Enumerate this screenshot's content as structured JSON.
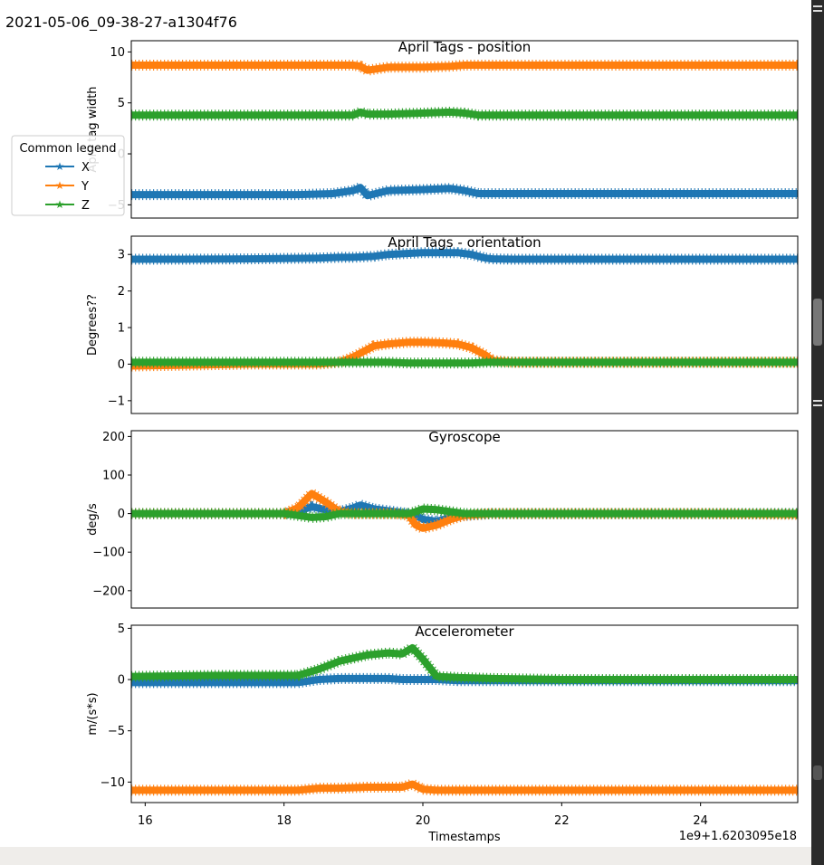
{
  "page_title": "2021-05-06_09-38-27-a1304f76",
  "legend": {
    "title": "Common legend",
    "entries": [
      "X",
      "Y",
      "Z"
    ]
  },
  "colors": {
    "X": "#1f77b4",
    "Y": "#ff7f0e",
    "Z": "#2ca02c",
    "axes": "#000000",
    "strip": "#efedea",
    "scrollbar": "#2b2b2b"
  },
  "xaxis": {
    "label": "Timestamps",
    "offset_text": "1e9+1.6203095e18",
    "range": [
      15.8,
      25.4
    ],
    "ticks": [
      16,
      18,
      20,
      22,
      24
    ],
    "tick_labels": [
      "16",
      "18",
      "20",
      "22",
      "24"
    ]
  },
  "chart_data": [
    {
      "type": "line",
      "title": "April Tags - position",
      "ylabel": "April tag width",
      "ylim": [
        -6.3,
        11.1
      ],
      "yticks": [
        -5,
        0,
        5,
        10
      ],
      "ytick_labels": [
        "−5",
        "0",
        "5",
        "10"
      ],
      "x": [
        15.8,
        16.5,
        17.5,
        18.2,
        18.7,
        19.0,
        19.1,
        19.2,
        19.5,
        20.0,
        20.4,
        20.6,
        20.8,
        21.0,
        22.0,
        23.0,
        24.0,
        25.4
      ],
      "series": [
        {
          "name": "X",
          "values": [
            -4.0,
            -4.0,
            -4.0,
            -4.0,
            -3.9,
            -3.6,
            -3.3,
            -4.1,
            -3.6,
            -3.5,
            -3.4,
            -3.6,
            -3.9,
            -3.9,
            -3.9,
            -3.9,
            -3.9,
            -3.9
          ]
        },
        {
          "name": "Y",
          "values": [
            8.7,
            8.7,
            8.7,
            8.7,
            8.7,
            8.7,
            8.6,
            8.2,
            8.5,
            8.5,
            8.6,
            8.7,
            8.7,
            8.7,
            8.7,
            8.7,
            8.7,
            8.7
          ]
        },
        {
          "name": "Z",
          "values": [
            3.8,
            3.8,
            3.8,
            3.8,
            3.8,
            3.8,
            4.1,
            3.9,
            3.9,
            4.0,
            4.1,
            4.0,
            3.8,
            3.8,
            3.8,
            3.8,
            3.8,
            3.8
          ]
        }
      ]
    },
    {
      "type": "line",
      "title": "April Tags - orientation",
      "ylabel": "Degrees??",
      "ylim": [
        -1.35,
        3.5
      ],
      "yticks": [
        -1,
        0,
        1,
        2,
        3
      ],
      "ytick_labels": [
        "−1",
        "0",
        "1",
        "2",
        "3"
      ],
      "x": [
        15.8,
        16.5,
        17.5,
        18.5,
        18.8,
        19.0,
        19.3,
        19.5,
        19.8,
        20.0,
        20.3,
        20.5,
        20.7,
        20.9,
        21.0,
        21.3,
        22.0,
        23.0,
        24.0,
        25.4
      ],
      "series": [
        {
          "name": "X",
          "values": [
            2.87,
            2.87,
            2.88,
            2.9,
            2.92,
            2.92,
            2.95,
            3.0,
            3.03,
            3.05,
            3.05,
            3.05,
            3.0,
            2.9,
            2.88,
            2.87,
            2.87,
            2.87,
            2.87,
            2.87
          ]
        },
        {
          "name": "Y",
          "values": [
            -0.05,
            -0.03,
            0.0,
            0.0,
            0.05,
            0.2,
            0.5,
            0.55,
            0.6,
            0.6,
            0.58,
            0.55,
            0.45,
            0.25,
            0.1,
            0.05,
            0.05,
            0.05,
            0.05,
            0.05
          ]
        },
        {
          "name": "Z",
          "values": [
            0.05,
            0.05,
            0.05,
            0.05,
            0.05,
            0.05,
            0.05,
            0.05,
            0.03,
            0.03,
            0.03,
            0.03,
            0.03,
            0.05,
            0.05,
            0.05,
            0.05,
            0.05,
            0.05,
            0.05
          ]
        }
      ]
    },
    {
      "type": "line",
      "title": "Gyroscope",
      "ylabel": "deg/s",
      "ylim": [
        -245,
        215
      ],
      "yticks": [
        -200,
        -100,
        0,
        100,
        200
      ],
      "ytick_labels": [
        "−200",
        "−100",
        "0",
        "100",
        "200"
      ],
      "x": [
        15.8,
        17.0,
        18.0,
        18.2,
        18.4,
        18.6,
        18.8,
        19.0,
        19.1,
        19.3,
        19.6,
        19.8,
        19.9,
        20.0,
        20.2,
        20.4,
        20.6,
        21.0,
        22.0,
        23.0,
        24.0,
        25.4
      ],
      "series": [
        {
          "name": "X",
          "values": [
            0,
            0,
            0,
            5,
            18,
            10,
            5,
            15,
            22,
            12,
            5,
            0,
            -5,
            -15,
            -20,
            -10,
            -5,
            0,
            0,
            0,
            0,
            0
          ]
        },
        {
          "name": "Y",
          "values": [
            0,
            0,
            0,
            15,
            52,
            30,
            5,
            0,
            0,
            0,
            0,
            -5,
            -30,
            -38,
            -30,
            -15,
            -5,
            0,
            0,
            0,
            0,
            -2
          ]
        },
        {
          "name": "Z",
          "values": [
            0,
            0,
            0,
            -5,
            -10,
            -8,
            0,
            0,
            0,
            0,
            0,
            0,
            5,
            12,
            10,
            5,
            0,
            0,
            0,
            0,
            0,
            0
          ]
        }
      ]
    },
    {
      "type": "line",
      "title": "Accelerometer",
      "ylabel": "m/(s*s)",
      "ylim": [
        -12.0,
        5.3
      ],
      "yticks": [
        -10,
        -5,
        0,
        5
      ],
      "ytick_labels": [
        "−10",
        "−5",
        "0",
        "5"
      ],
      "x": [
        15.8,
        17.0,
        18.2,
        18.5,
        18.8,
        19.2,
        19.5,
        19.7,
        19.85,
        20.0,
        20.2,
        20.5,
        21.0,
        22.0,
        23.0,
        24.0,
        25.4
      ],
      "series": [
        {
          "name": "X",
          "values": [
            -0.3,
            -0.3,
            -0.3,
            0.0,
            0.1,
            0.1,
            0.1,
            0.0,
            0.0,
            0.0,
            0.0,
            -0.1,
            -0.1,
            -0.1,
            -0.1,
            -0.1,
            -0.1
          ]
        },
        {
          "name": "Y",
          "values": [
            -10.8,
            -10.8,
            -10.8,
            -10.6,
            -10.6,
            -10.5,
            -10.5,
            -10.5,
            -10.2,
            -10.7,
            -10.8,
            -10.8,
            -10.8,
            -10.8,
            -10.8,
            -10.8,
            -10.8
          ]
        },
        {
          "name": "Z",
          "values": [
            0.3,
            0.4,
            0.4,
            1.0,
            1.8,
            2.4,
            2.6,
            2.5,
            3.1,
            2.0,
            0.3,
            0.2,
            0.1,
            0.0,
            0.0,
            0.0,
            0.0
          ]
        }
      ]
    }
  ]
}
